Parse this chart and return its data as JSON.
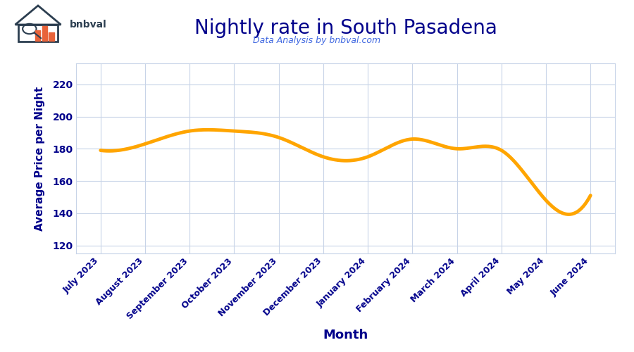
{
  "title": "Nightly rate in South Pasadena",
  "subtitle": "Data Analysis by bnbval.com",
  "xlabel": "Month",
  "ylabel": "Average Price per Night",
  "line_color": "#FFA500",
  "line_width": 3.5,
  "title_color": "#00008B",
  "subtitle_color": "#4169E1",
  "axis_label_color": "#00008B",
  "tick_label_color": "#00008B",
  "grid_color": "#C8D4E8",
  "background_color": "#FFFFFF",
  "ylim": [
    115,
    233
  ],
  "yticks": [
    120,
    140,
    160,
    180,
    200,
    220
  ],
  "months": [
    "July 2023",
    "August 2023",
    "September 2023",
    "October 2023",
    "November 2023",
    "December 2023",
    "January 2024",
    "February 2024",
    "March 2024",
    "April 2024",
    "May 2024",
    "June 2024"
  ],
  "values": [
    179,
    183,
    191,
    191,
    187,
    175,
    175,
    186,
    180,
    179,
    148,
    151
  ],
  "logo_house_color": "#2C3E50",
  "logo_bar_colors": [
    "#E8633A",
    "#E8633A",
    "#E8633A"
  ],
  "logo_text_color": "#2C3E50",
  "title_fontsize": 20,
  "subtitle_fontsize": 9,
  "xlabel_fontsize": 13,
  "ylabel_fontsize": 11,
  "tick_fontsize": 9
}
